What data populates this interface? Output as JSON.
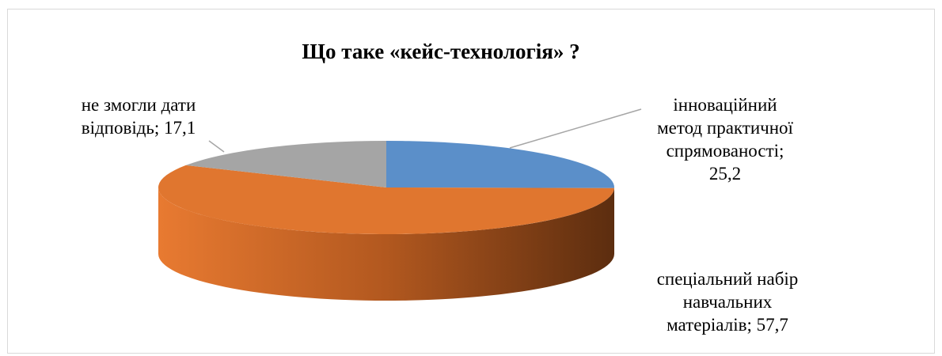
{
  "chart_data": {
    "type": "pie",
    "title": "Що таке «кейс-технологія» ?",
    "slices": [
      {
        "name": "інноваційний метод практичної спрямованості",
        "value": 25.2,
        "label_lines": [
          "інноваційний",
          "метод практичної",
          "спрямованості;",
          "25,2"
        ],
        "color": "#5b8fc9"
      },
      {
        "name": "спеціальний набір навчальних матеріалів",
        "value": 57.7,
        "label_lines": [
          "спеціальний набір",
          "навчальних",
          "матеріалів; 57,7"
        ],
        "color": "#e0762f"
      },
      {
        "name": "не змогли дати відповідь",
        "value": 17.1,
        "label_lines": [
          "не змогли дати",
          "відповідь; 17,1"
        ],
        "color": "#a5a5a5"
      }
    ],
    "style": "3d",
    "legend": "none"
  }
}
